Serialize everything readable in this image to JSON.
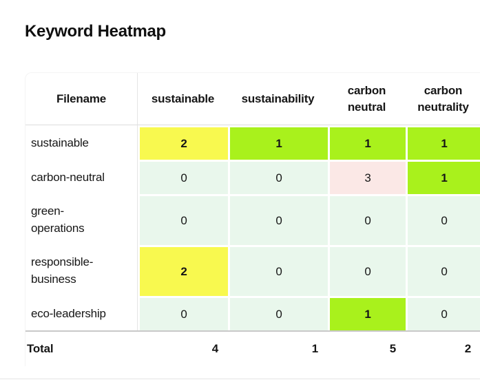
{
  "title": "Keyword Heatmap",
  "colors": {
    "highlight_green": "#a9f11c",
    "highlight_yellow": "#f8f94f",
    "highlight_pink": "#fbe8e6",
    "cell_mint": "#e9f7ec"
  },
  "table": {
    "columns": [
      "Filename",
      "sustainable",
      "sustainability",
      "carbon neutral",
      "carbon neutrality"
    ],
    "rows": [
      {
        "filename": "sustainable",
        "values": [
          2,
          1,
          1,
          1
        ],
        "colors": [
          "yellow",
          "green",
          "green",
          "green"
        ]
      },
      {
        "filename": "carbon-neutral",
        "values": [
          0,
          0,
          3,
          1
        ],
        "colors": [
          "mint",
          "mint",
          "pink",
          "green"
        ]
      },
      {
        "filename": "green-operations",
        "values": [
          0,
          0,
          0,
          0
        ],
        "colors": [
          "mint",
          "mint",
          "mint",
          "mint"
        ]
      },
      {
        "filename": "responsible-business",
        "values": [
          2,
          0,
          0,
          0
        ],
        "colors": [
          "yellow",
          "mint",
          "mint",
          "mint"
        ]
      },
      {
        "filename": "eco-leadership",
        "values": [
          0,
          0,
          1,
          0
        ],
        "colors": [
          "mint",
          "mint",
          "green",
          "mint"
        ]
      }
    ],
    "total": {
      "label": "Total",
      "values": [
        4,
        1,
        5,
        2
      ]
    }
  },
  "chart_data": {
    "type": "heatmap",
    "title": "Keyword Heatmap",
    "x_labels": [
      "sustainable",
      "sustainability",
      "carbon neutral",
      "carbon neutrality"
    ],
    "y_labels": [
      "sustainable",
      "carbon-neutral",
      "green-operations",
      "responsible-business",
      "eco-leadership"
    ],
    "values": [
      [
        2,
        1,
        1,
        1
      ],
      [
        0,
        0,
        3,
        1
      ],
      [
        0,
        0,
        0,
        0
      ],
      [
        2,
        0,
        0,
        0
      ],
      [
        0,
        0,
        1,
        0
      ]
    ],
    "column_totals": [
      4,
      1,
      5,
      2
    ],
    "legend_position": "none",
    "grid": false
  }
}
